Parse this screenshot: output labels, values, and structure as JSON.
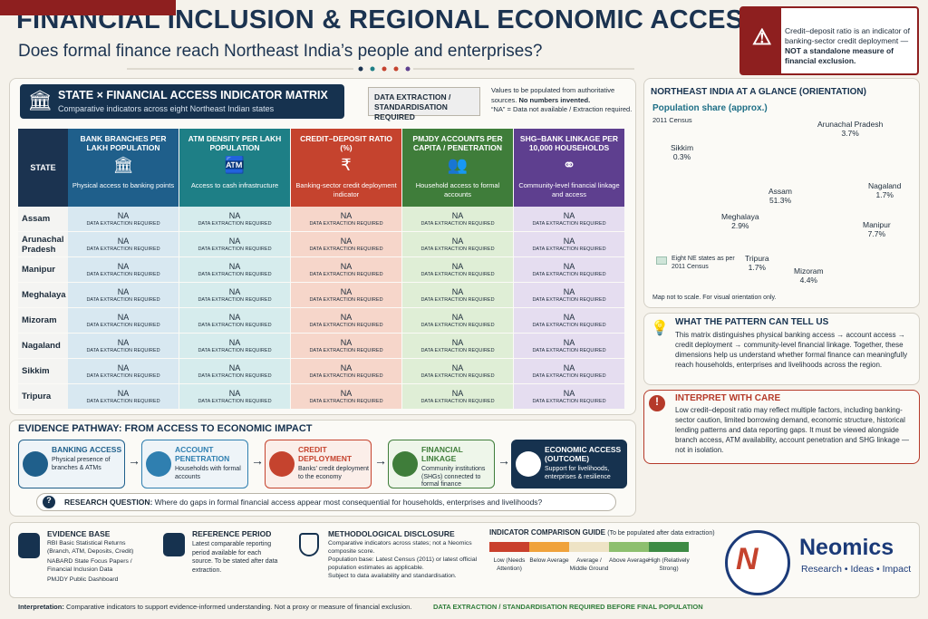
{
  "header": {
    "title": "FINANCIAL INCLUSION & REGIONAL ECONOMIC ACCESS",
    "subtitle": "Does formal finance reach Northeast India’s people and enterprises?"
  },
  "note": {
    "title": "IMPORTANT INTERPRETATION NOTE",
    "text": "Credit–deposit ratio is an indicator of banking-sector credit deployment —",
    "emphasis": "NOT a standalone measure of financial exclusion."
  },
  "matrix": {
    "title": "STATE × FINANCIAL ACCESS INDICATOR MATRIX",
    "subtitle": "Comparative indicators across eight Northeast Indian states",
    "badge": "DATA EXTRACTION / STANDARDISATION REQUIRED",
    "note_1": "Values to be populated from authoritative sources.",
    "note_1_bold": "No numbers invented.",
    "note_2": "“NA” = Data not available / Extraction required.",
    "state_header": "STATE",
    "columns": [
      {
        "title": "BANK BRANCHES PER LAKH POPULATION",
        "text": "Physical access to banking points"
      },
      {
        "title": "ATM DENSITY PER LAKH POPULATION",
        "text": "Access to cash infrastructure"
      },
      {
        "title": "CREDIT–DEPOSIT RATIO (%)",
        "text": "Banking-sector credit deployment indicator"
      },
      {
        "title": "PMJDY ACCOUNTS PER CAPITA / PENETRATION",
        "text": "Household access to formal accounts"
      },
      {
        "title": "SHG–BANK LINKAGE PER 10,000 HOUSEHOLDS",
        "text": "Community-level financial linkage and access"
      }
    ],
    "rows": [
      {
        "state": "Assam",
        "cells": [
          {
            "value": "NA",
            "note": "DATA EXTRACTION REQUIRED"
          },
          {
            "value": "NA",
            "note": "DATA EXTRACTION REQUIRED"
          },
          {
            "value": "NA",
            "note": "DATA EXTRACTION REQUIRED"
          },
          {
            "value": "NA",
            "note": "DATA EXTRACTION REQUIRED"
          },
          {
            "value": "NA",
            "note": "DATA EXTRACTION REQUIRED"
          }
        ]
      },
      {
        "state": "Arunachal Pradesh",
        "cells": [
          {
            "value": "NA",
            "note": "DATA EXTRACTION REQUIRED"
          },
          {
            "value": "NA",
            "note": "DATA EXTRACTION REQUIRED"
          },
          {
            "value": "NA",
            "note": "DATA EXTRACTION REQUIRED"
          },
          {
            "value": "NA",
            "note": "DATA EXTRACTION REQUIRED"
          },
          {
            "value": "NA",
            "note": "DATA EXTRACTION REQUIRED"
          }
        ]
      },
      {
        "state": "Manipur",
        "cells": [
          {
            "value": "NA",
            "note": "DATA EXTRACTION REQUIRED"
          },
          {
            "value": "NA",
            "note": "DATA EXTRACTION REQUIRED"
          },
          {
            "value": "NA",
            "note": "DATA EXTRACTION REQUIRED"
          },
          {
            "value": "NA",
            "note": "DATA EXTRACTION REQUIRED"
          },
          {
            "value": "NA",
            "note": "DATA EXTRACTION REQUIRED"
          }
        ]
      },
      {
        "state": "Meghalaya",
        "cells": [
          {
            "value": "NA",
            "note": "DATA EXTRACTION REQUIRED"
          },
          {
            "value": "NA",
            "note": "DATA EXTRACTION REQUIRED"
          },
          {
            "value": "NA",
            "note": "DATA EXTRACTION REQUIRED"
          },
          {
            "value": "NA",
            "note": "DATA EXTRACTION REQUIRED"
          },
          {
            "value": "NA",
            "note": "DATA EXTRACTION REQUIRED"
          }
        ]
      },
      {
        "state": "Mizoram",
        "cells": [
          {
            "value": "NA",
            "note": "DATA EXTRACTION REQUIRED"
          },
          {
            "value": "NA",
            "note": "DATA EXTRACTION REQUIRED"
          },
          {
            "value": "NA",
            "note": "DATA EXTRACTION REQUIRED"
          },
          {
            "value": "NA",
            "note": "DATA EXTRACTION REQUIRED"
          },
          {
            "value": "NA",
            "note": "DATA EXTRACTION REQUIRED"
          }
        ]
      },
      {
        "state": "Nagaland",
        "cells": [
          {
            "value": "NA",
            "note": "DATA EXTRACTION REQUIRED"
          },
          {
            "value": "NA",
            "note": "DATA EXTRACTION REQUIRED"
          },
          {
            "value": "NA",
            "note": "DATA EXTRACTION REQUIRED"
          },
          {
            "value": "NA",
            "note": "DATA EXTRACTION REQUIRED"
          },
          {
            "value": "NA",
            "note": "DATA EXTRACTION REQUIRED"
          }
        ]
      },
      {
        "state": "Sikkim",
        "cells": [
          {
            "value": "NA",
            "note": "DATA EXTRACTION REQUIRED"
          },
          {
            "value": "NA",
            "note": "DATA EXTRACTION REQUIRED"
          },
          {
            "value": "NA",
            "note": "DATA EXTRACTION REQUIRED"
          },
          {
            "value": "NA",
            "note": "DATA EXTRACTION REQUIRED"
          },
          {
            "value": "NA",
            "note": "DATA EXTRACTION REQUIRED"
          }
        ]
      },
      {
        "state": "Tripura",
        "cells": [
          {
            "value": "NA",
            "note": "DATA EXTRACTION REQUIRED"
          },
          {
            "value": "NA",
            "note": "DATA EXTRACTION REQUIRED"
          },
          {
            "value": "NA",
            "note": "DATA EXTRACTION REQUIRED"
          },
          {
            "value": "NA",
            "note": "DATA EXTRACTION REQUIRED"
          },
          {
            "value": "NA",
            "note": "DATA EXTRACTION REQUIRED"
          }
        ]
      }
    ]
  },
  "map": {
    "title": "NORTHEAST INDIA AT A GLANCE (ORIENTATION)",
    "subtitle": "Population share (approx.)",
    "census": "2011 Census",
    "states": [
      {
        "name": "Arunachal Pradesh",
        "share": "3.7%"
      },
      {
        "name": "Sikkim",
        "share": "0.3%"
      },
      {
        "name": "Nagaland",
        "share": "1.7%"
      },
      {
        "name": "Assam",
        "share": "51.3%"
      },
      {
        "name": "Meghalaya",
        "share": "2.9%"
      },
      {
        "name": "Manipur",
        "share": "7.7%"
      },
      {
        "name": "Tripura",
        "share": "1.7%"
      },
      {
        "name": "Mizoram",
        "share": "4.4%"
      }
    ],
    "legend": "Eight NE states as per 2011 Census",
    "footnote": "Map not to scale. For visual orientation only."
  },
  "pattern": {
    "title": "WHAT THE PATTERN CAN TELL US",
    "text": "This matrix distinguishes physical banking access → account access → credit deployment → community-level financial linkage. Together, these dimensions help us understand whether formal finance can meaningfully reach households, enterprises and livelihoods across the region."
  },
  "care": {
    "title": "INTERPRET WITH CARE",
    "text": "Low credit–deposit ratio may reflect multiple factors, including banking-sector caution, limited borrowing demand, economic structure, historical lending patterns and data reporting gaps. It must be viewed alongside branch access, ATM availability, account penetration and SHG linkage — not in isolation."
  },
  "pathway": {
    "title": "EVIDENCE PATHWAY: FROM ACCESS TO ECONOMIC IMPACT",
    "steps": [
      {
        "title": "BANKING ACCESS",
        "text": "Physical presence of branches & ATMs"
      },
      {
        "title": "ACCOUNT PENETRATION",
        "text": "Households with formal accounts"
      },
      {
        "title": "CREDIT DEPLOYMENT",
        "text": "Banks’ credit deployment to the economy"
      },
      {
        "title": "FINANCIAL LINKAGE",
        "text": "Community institutions (SHGs) connected to formal finance"
      },
      {
        "title": "ECONOMIC ACCESS (OUTCOME)",
        "text": "Support for livelihoods, enterprises & resilience"
      }
    ],
    "research_label": "RESEARCH QUESTION:",
    "research_question": "Where do gaps in formal financial access appear most consequential for households, enterprises and livelihoods?"
  },
  "footer": {
    "evidence": {
      "title": "EVIDENCE BASE",
      "items": [
        "RBI Basic Statistical Returns (Branch, ATM, Deposits, Credit)",
        "NABARD State Focus Papers / Financial Inclusion Data",
        "PMJDY Public Dashboard"
      ]
    },
    "reference": {
      "title": "REFERENCE PERIOD",
      "text": "Latest comparable reporting period available for each source. To be stated after data extraction."
    },
    "method": {
      "title": "METHODOLOGICAL DISCLOSURE",
      "items": [
        "Comparative indicators across states; not a Neomics composite score.",
        "Population base: Latest Census (2011) or latest official population estimates as applicable.",
        "Subject to data availability and standardisation."
      ]
    },
    "guide": {
      "title": "INDICATOR COMPARISON GUIDE",
      "note": "(To be populated after data extraction)",
      "levels": [
        "Low (Needs Attention)",
        "Below Average",
        "Average / Middle Ground",
        "Above Average",
        "High (Relatively Strong)"
      ]
    },
    "logo": {
      "name": "Neomics",
      "tagline": "Research • Ideas • Impact"
    },
    "interpretation_label": "Interpretation:",
    "interpretation": "Comparative indicators to support evidence-informed understanding. Not a proxy or measure of financial exclusion.",
    "status": "DATA EXTRACTION / STANDARDISATION REQUIRED BEFORE FINAL POPULATION"
  }
}
